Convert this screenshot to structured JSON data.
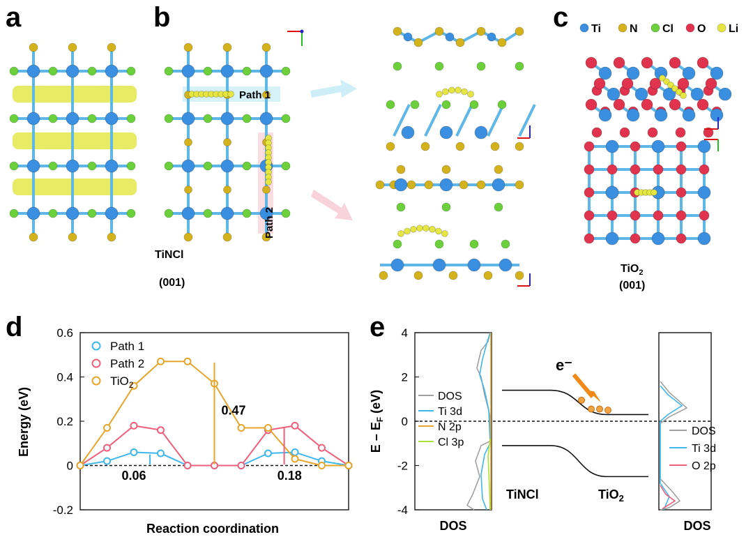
{
  "panels": {
    "a": {
      "letter": "a",
      "material": "TiNCl",
      "facet": "(001)"
    },
    "b": {
      "letter": "b",
      "path1": "Path 1",
      "path2": "Path 2"
    },
    "c": {
      "letter": "c",
      "material_main": "TiO",
      "material_sub": "2",
      "facet": "(001)",
      "legend": [
        {
          "symbol": "Ti",
          "color": "#3a8fe0"
        },
        {
          "symbol": "N",
          "color": "#d4b21c"
        },
        {
          "symbol": "Cl",
          "color": "#6bd03a"
        },
        {
          "symbol": "O",
          "color": "#e0334e"
        },
        {
          "symbol": "Li",
          "color": "#e6e640"
        }
      ]
    },
    "d": {
      "letter": "d"
    },
    "e": {
      "letter": "e"
    }
  },
  "colors": {
    "ti": "#3a8fe0",
    "n": "#d4b21c",
    "cl": "#6bd03a",
    "o": "#e0334e",
    "li": "#e6e640",
    "path1": "#3fb6ec",
    "path2": "#ee5f7c",
    "tio2": "#e6a52b",
    "bond": "#5fb7e8"
  },
  "chart_data": [
    {
      "type": "line",
      "xlabel": "Reaction coordination",
      "ylabel": "Energy (eV)",
      "ylim": [
        -0.2,
        0.6
      ],
      "yticks": [
        "-0.2",
        "0",
        "0.2",
        "0.4",
        "0.6"
      ],
      "legend_position": "top-left",
      "series": [
        {
          "name": "Path 1",
          "x": [
            0,
            1,
            2,
            3,
            4,
            5,
            6,
            7,
            8,
            9,
            10
          ],
          "y": [
            0,
            0.02,
            0.06,
            0.055,
            0,
            0,
            0,
            0.055,
            0.06,
            0.02,
            0
          ]
        },
        {
          "name": "Path 2",
          "x": [
            0,
            1,
            2,
            3,
            4,
            5,
            6,
            7,
            8,
            9,
            10
          ],
          "y": [
            0,
            0.08,
            0.18,
            0.16,
            0,
            0,
            0,
            0.16,
            0.18,
            0.08,
            0
          ]
        },
        {
          "name": "TiO",
          "name_sub": "2",
          "x": [
            0,
            1,
            2,
            3,
            4,
            5,
            6,
            7,
            8,
            9,
            10
          ],
          "y": [
            0,
            0.17,
            0.36,
            0.47,
            0.47,
            0.37,
            0.17,
            0.17,
            0.03,
            0,
            0
          ]
        }
      ],
      "annotations": {
        "barrier_tio2": "0.47",
        "barrier_path1": "0.06",
        "barrier_path2": "0.18"
      }
    },
    {
      "type": "line",
      "ylabel_main": "E – E",
      "ylabel_sub": "F",
      "ylabel_tail": " (eV)",
      "ylim": [
        -4,
        4
      ],
      "yticks": [
        "-4",
        "-2",
        "0",
        "2",
        "4"
      ],
      "xlabel_left": "DOS",
      "xlabel_right": "DOS",
      "legend_left": [
        {
          "name": "DOS",
          "color": "#a0a0a0"
        },
        {
          "name": "Ti 3d",
          "color": "#3fb6ec"
        },
        {
          "name": "N 2p",
          "color": "#e6a52b"
        },
        {
          "name": "Cl 3p",
          "color": "#a8e23a"
        }
      ],
      "legend_right": [
        {
          "name": "DOS",
          "color": "#a0a0a0"
        },
        {
          "name": "Ti 3d",
          "color": "#3fb6ec"
        },
        {
          "name": "O 2p",
          "color": "#ee5f7c"
        }
      ],
      "band_labels": {
        "left": "TiNCl",
        "right_main": "TiO",
        "right_sub": "2",
        "electron": "e⁻"
      }
    }
  ]
}
